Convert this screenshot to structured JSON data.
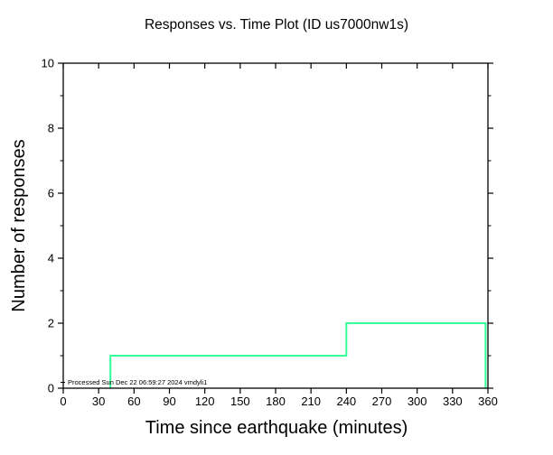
{
  "chart_data": {
    "type": "step",
    "title": "Responses vs. Time Plot (ID us7000nw1s)",
    "xlabel": "Time since earthquake (minutes)",
    "ylabel": "Number of responses",
    "xlim": [
      0,
      360
    ],
    "ylim": [
      0,
      10
    ],
    "xticks": [
      0,
      30,
      60,
      90,
      120,
      150,
      180,
      210,
      240,
      270,
      300,
      330,
      360
    ],
    "yticks_major": [
      0,
      2,
      4,
      6,
      8,
      10
    ],
    "yticks_minor": [
      1,
      3,
      5,
      7,
      9
    ],
    "grid": "off",
    "legend": "none",
    "line_color": "#33ff99",
    "axis_color": "#000000",
    "points": [
      [
        40,
        0
      ],
      [
        40,
        1
      ],
      [
        240,
        1
      ],
      [
        240,
        2
      ],
      [
        358,
        2
      ],
      [
        358,
        0
      ]
    ],
    "annotation": "Processed Sun Dec 22 06:59:27 2024 vmdyli1"
  }
}
